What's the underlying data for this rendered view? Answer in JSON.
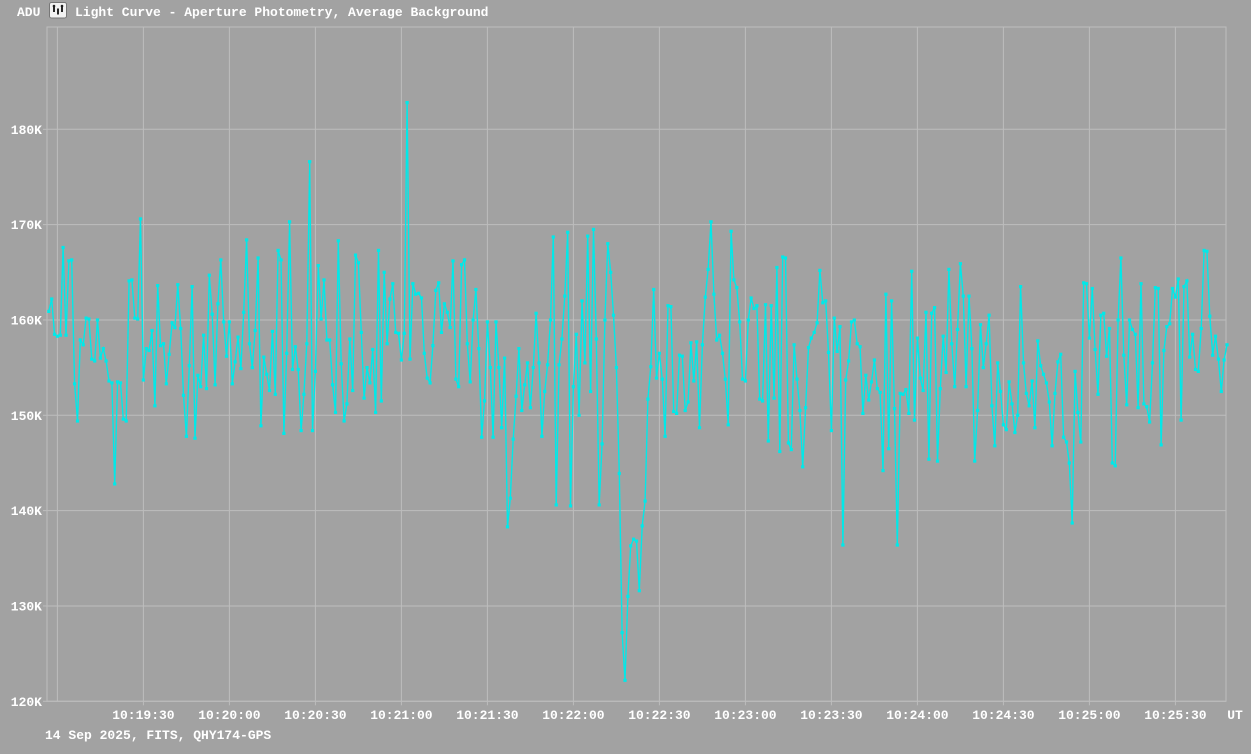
{
  "header": {
    "y_axis_unit": "ADU",
    "title": "Light Curve - Aperture Photometry, Average Background"
  },
  "footer": {
    "info": "14 Sep 2025, FITS, QHY174-GPS"
  },
  "colors": {
    "background": "#a2a2a2",
    "grid": "#bdbdbd",
    "curve": "#00e9e9",
    "text": "#ffffff"
  },
  "chart_data": {
    "type": "line",
    "title": "Light Curve - Aperture Photometry, Average Background",
    "ylabel": "ADU",
    "xlabel": "UT",
    "grid": true,
    "legend": "none",
    "marker": "square",
    "y_axis": {
      "tick_labels": [
        "120K",
        "130K",
        "140K",
        "150K",
        "160K",
        "170K",
        "180K"
      ],
      "tick_values_kadu": [
        120,
        130,
        140,
        150,
        160,
        170,
        180
      ],
      "ylim_kadu": [
        120,
        190.7
      ]
    },
    "x_axis": {
      "unit_label": "UT",
      "origin_time": "10:19:00",
      "tick_step_s": 30,
      "first_labeled_tick_s": 30,
      "last_gridline_s": 390,
      "tick_labels": [
        "10:19:30",
        "10:20:00",
        "10:20:30",
        "10:21:00",
        "10:21:30",
        "10:22:00",
        "10:22:30",
        "10:23:00",
        "10:23:30",
        "10:24:00",
        "10:24:30",
        "10:25:00",
        "10:25:30"
      ]
    },
    "series": [
      {
        "name": "aperture-photometry-average-background",
        "start_offset_s": -3,
        "cadence_s": 1,
        "unit": "kADU",
        "values": [
          160.9,
          162.2,
          158.5,
          158.3,
          158.4,
          167.6,
          158.4,
          166.2,
          166.3,
          153.3,
          149.4,
          157.9,
          157.4,
          160.2,
          160.1,
          155.9,
          155.7,
          160.0,
          156.0,
          157.0,
          155.7,
          153.6,
          153.4,
          142.8,
          153.5,
          153.4,
          149.6,
          149.4,
          164.1,
          164.2,
          160.2,
          160.1,
          170.6,
          153.7,
          157.0,
          156.8,
          158.9,
          151.0,
          163.6,
          157.3,
          157.5,
          153.3,
          156.4,
          159.7,
          159.2,
          163.7,
          159.1,
          152.1,
          147.8,
          155.2,
          163.5,
          147.6,
          154.2,
          153.0,
          158.4,
          152.8,
          164.7,
          160.6,
          153.2,
          161.7,
          166.3,
          159.8,
          156.2,
          159.8,
          153.3,
          155.6,
          158.2,
          154.9,
          160.8,
          168.4,
          157.5,
          155.0,
          158.9,
          166.5,
          148.9,
          156.1,
          154.3,
          152.6,
          158.8,
          152.2,
          167.3,
          166.3,
          148.1,
          156.5,
          170.3,
          154.8,
          157.2,
          154.8,
          148.4,
          152.2,
          157.5,
          176.6,
          148.4,
          154.6,
          165.7,
          160.1,
          164.2,
          157.9,
          157.9,
          153.2,
          150.3,
          168.3,
          155.4,
          149.4,
          151.2,
          158.0,
          152.6,
          166.8,
          166.0,
          158.7,
          151.8,
          155.0,
          153.4,
          156.9,
          150.3,
          167.3,
          151.5,
          165.0,
          157.5,
          162.2,
          163.8,
          158.7,
          158.6,
          155.8,
          158.6,
          182.8,
          155.9,
          163.8,
          162.7,
          162.8,
          162.3,
          156.5,
          153.9,
          153.4,
          157.3,
          163.1,
          163.9,
          158.7,
          161.7,
          160.8,
          159.2,
          166.2,
          153.8,
          153.0,
          165.8,
          166.3,
          157.5,
          153.5,
          160.0,
          163.2,
          157.0,
          147.7,
          151.5,
          159.8,
          155.0,
          147.7,
          159.8,
          155.0,
          148.7,
          156.0,
          138.3,
          141.3,
          147.5,
          152.0,
          157.0,
          150.5,
          153.2,
          155.5,
          150.8,
          155.0,
          160.7,
          155.5,
          147.8,
          152.5,
          155.3,
          160.0,
          168.7,
          140.6,
          155.3,
          158.0,
          162.5,
          169.2,
          140.5,
          153.0,
          158.5,
          150.0,
          162.0,
          155.5,
          168.8,
          152.5,
          169.5,
          158.0,
          140.6,
          147.0,
          160.0,
          168.0,
          165.0,
          160.5,
          155.0,
          143.9,
          127.2,
          122.2,
          131.0,
          136.3,
          137.0,
          136.8,
          131.6,
          138.4,
          141.0,
          151.7,
          155.1,
          163.2,
          153.9,
          156.5,
          153.8,
          147.8,
          161.5,
          161.4,
          150.4,
          150.2,
          156.3,
          156.2,
          150.5,
          151.4,
          157.6,
          153.6,
          157.7,
          148.7,
          157.4,
          162.4,
          165.3,
          170.3,
          162.7,
          157.9,
          158.4,
          156.5,
          153.8,
          149.0,
          169.3,
          164.2,
          163.4,
          159.8,
          153.8,
          153.6,
          160.0,
          162.3,
          161.2,
          161.5,
          151.7,
          151.5,
          161.6,
          147.3,
          161.5,
          151.8,
          165.5,
          146.2,
          166.6,
          166.5,
          147.1,
          146.4,
          157.4,
          153.8,
          150.5,
          144.6,
          150.8,
          157.1,
          158.1,
          158.7,
          159.7,
          165.2,
          161.8,
          162.0,
          156.6,
          148.4,
          160.2,
          156.7,
          159.3,
          136.4,
          153.7,
          155.7,
          159.8,
          160.0,
          157.5,
          157.2,
          150.2,
          154.2,
          151.6,
          153.5,
          155.8,
          152.8,
          152.4,
          144.2,
          162.7,
          146.5,
          162.0,
          150.7,
          136.4,
          152.3,
          152.2,
          152.7,
          150.2,
          165.1,
          149.5,
          158.1,
          153.9,
          152.6,
          160.8,
          145.4,
          160.7,
          161.3,
          145.2,
          152.8,
          158.3,
          154.5,
          165.3,
          157.5,
          153.0,
          159.0,
          165.9,
          162.5,
          153.0,
          162.5,
          157.0,
          145.2,
          150.5,
          159.5,
          155.0,
          157.5,
          160.5,
          151.0,
          146.8,
          155.5,
          152.5,
          149.0,
          148.5,
          153.5,
          151.2,
          148.2,
          150.0,
          163.5,
          155.5,
          152.3,
          151.0,
          153.6,
          148.7,
          157.8,
          155.2,
          154.3,
          153.4,
          151.4,
          146.8,
          152.3,
          155.6,
          156.4,
          147.7,
          147.2,
          145.0,
          138.7,
          154.6,
          150.3,
          147.2,
          163.9,
          163.8,
          158.1,
          163.3,
          156.9,
          152.2,
          160.5,
          160.7,
          156.2,
          159.1,
          145.0,
          144.7,
          160.0,
          166.5,
          156.3,
          151.1,
          160.0,
          159.0,
          158.5,
          150.8,
          163.8,
          151.2,
          150.9,
          149.3,
          155.5,
          163.4,
          163.3,
          146.9,
          156.8,
          159.3,
          159.6,
          163.3,
          162.4,
          164.3,
          149.5,
          163.5,
          164.1,
          156.1,
          158.5,
          154.8,
          154.6,
          159.1,
          167.3,
          167.2,
          160.4,
          156.3,
          158.3,
          155.9,
          152.5,
          155.8,
          157.4
        ]
      }
    ]
  }
}
